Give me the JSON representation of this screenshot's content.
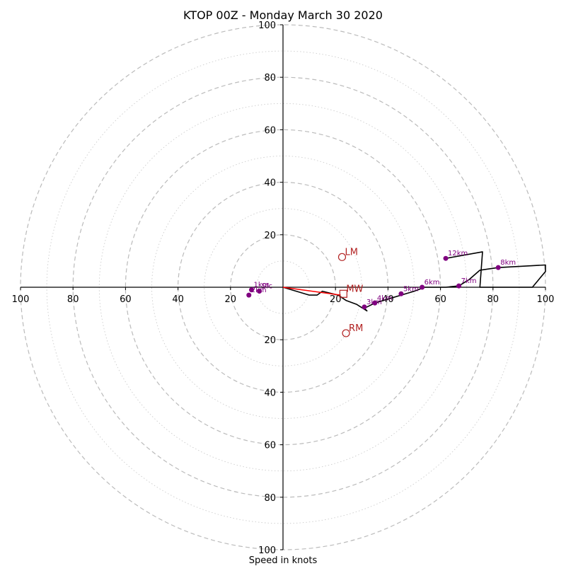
{
  "chart_data": {
    "type": "scatter",
    "title": "KTOP 00Z - Monday March 30 2020",
    "xlabel": "Speed in knots",
    "ylabel": "",
    "xlim": [
      -100,
      100
    ],
    "ylim": [
      -100,
      100
    ],
    "ring_ticks": [
      20,
      40,
      60,
      80,
      100
    ],
    "x_tick_labels": [
      "100",
      "80",
      "60",
      "40",
      "20",
      "20",
      "40",
      "60",
      "80",
      "100"
    ],
    "y_tick_labels": [
      "100",
      "80",
      "60",
      "40",
      "20",
      "20",
      "40",
      "60",
      "80",
      "100"
    ],
    "hodograph_trace": [
      [
        0,
        0
      ],
      [
        10,
        -3
      ],
      [
        13,
        -3
      ],
      [
        15,
        -1.5
      ],
      [
        21,
        -3
      ],
      [
        24,
        -5
      ],
      [
        28,
        -6.5
      ],
      [
        32,
        -9
      ],
      [
        31,
        -8
      ],
      [
        35,
        -6
      ],
      [
        40,
        -4.5
      ],
      [
        45,
        -3
      ],
      [
        50,
        -1.5
      ],
      [
        54,
        0
      ],
      [
        58,
        0
      ],
      [
        62,
        0
      ],
      [
        67,
        0.5
      ],
      [
        71,
        3
      ],
      [
        75,
        6.5
      ],
      [
        82,
        7.5
      ],
      [
        100,
        8.5
      ],
      [
        100,
        6
      ],
      [
        95,
        0
      ],
      [
        75,
        0
      ],
      [
        76,
        13.5
      ],
      [
        62,
        11
      ]
    ],
    "height_markers": [
      {
        "label": "Sfc",
        "u": -9,
        "v": -1.5
      },
      {
        "label": "1km",
        "u": -12,
        "v": -1
      },
      {
        "label": "2km",
        "u": -13,
        "v": -3
      },
      {
        "label": "3km",
        "u": 31,
        "v": -7.5
      },
      {
        "label": "4km",
        "u": 35,
        "v": -6
      },
      {
        "label": "5km",
        "u": 45,
        "v": -2.5
      },
      {
        "label": "6km",
        "u": 53,
        "v": 0
      },
      {
        "label": "7km",
        "u": 67,
        "v": 0.5
      },
      {
        "label": "8km",
        "u": 82,
        "v": 7.5
      },
      {
        "label": "12km",
        "u": 62,
        "v": 11
      }
    ],
    "storm_motion_vector": {
      "u": [
        0,
        22
      ],
      "v": [
        0,
        -3
      ]
    },
    "storm_motions": [
      {
        "label": "LM",
        "u": 22.5,
        "v": 11.5,
        "marker": "circle"
      },
      {
        "label": "MW",
        "u": 23,
        "v": -2.5,
        "marker": "square"
      },
      {
        "label": "RM",
        "u": 24,
        "v": -17.5,
        "marker": "circle"
      }
    ],
    "grid": true,
    "colors": {
      "trace": "#000000",
      "markers": "#800080",
      "storm_motion": "#b22222",
      "storm_vector": "#ff0000",
      "ring_major": "#bbbbbb",
      "ring_minor": "#cccccc"
    }
  }
}
